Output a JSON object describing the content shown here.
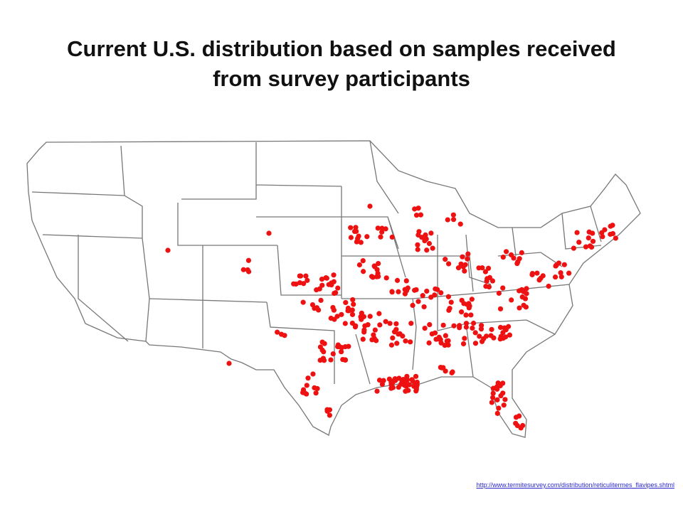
{
  "title": "Current U.S. distribution based on samples received from survey participants",
  "source_url": "http://www.termitesurvey.com/distribution/reticulitermes_flavipes.shtml"
}
